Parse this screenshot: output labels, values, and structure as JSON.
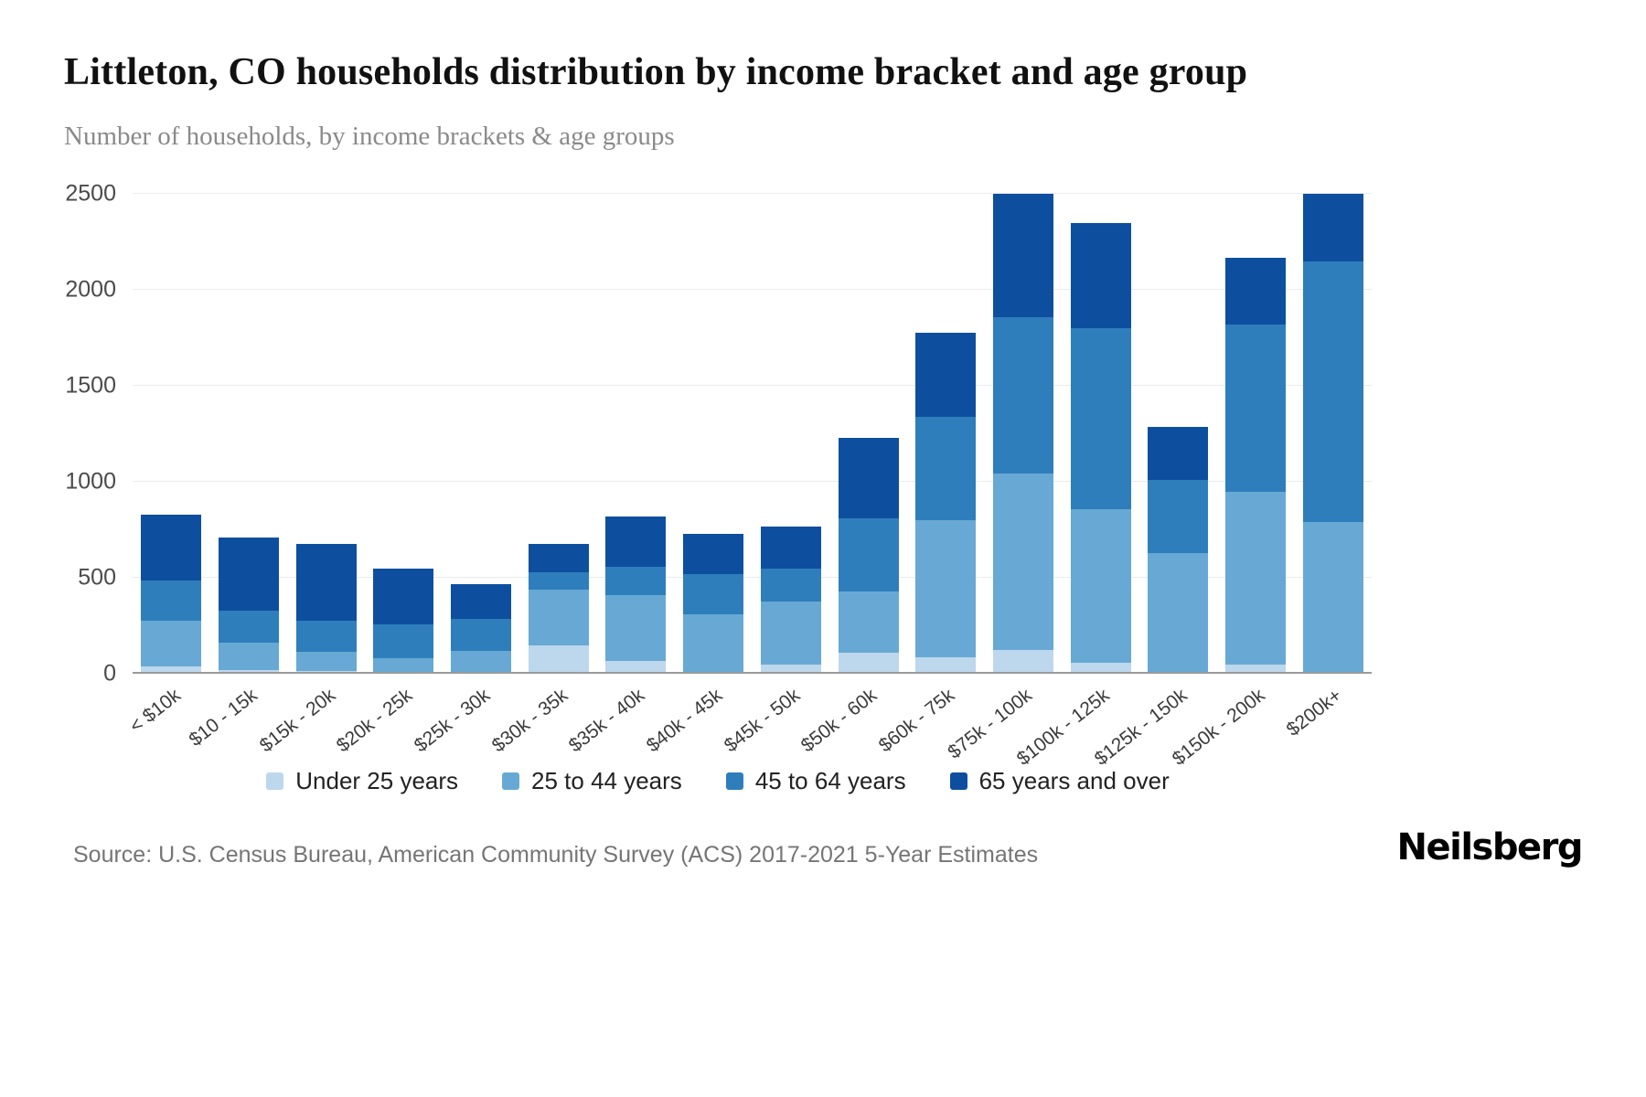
{
  "header": {
    "title": "Littleton, CO households distribution by income bracket and age group",
    "subtitle": "Number of households, by income brackets & age groups"
  },
  "chart_data": {
    "type": "bar",
    "stacked": true,
    "title": "Littleton, CO households distribution by income bracket and age group",
    "subtitle": "Number of households, by income brackets & age groups",
    "categories": [
      "< $10k",
      "$10 - 15k",
      "$15k - 20k",
      "$20k - 25k",
      "$25k - 30k",
      "$30k - 35k",
      "$35k - 40k",
      "$40k - 45k",
      "$45k - 50k",
      "$50k - 60k",
      "$60k - 75k",
      "$75k - 100k",
      "$100k - 125k",
      "$125k - 150k",
      "$150k - 200k",
      "$200k+"
    ],
    "series": [
      {
        "name": "Under 25 years",
        "color": "#bdd7ec",
        "values": [
          40,
          20,
          15,
          10,
          10,
          150,
          70,
          10,
          50,
          110,
          90,
          130,
          60,
          0,
          50,
          0
        ]
      },
      {
        "name": "25 to 44 years",
        "color": "#67a9d4",
        "values": [
          240,
          145,
          100,
          75,
          110,
          290,
          340,
          300,
          330,
          320,
          710,
          930,
          800,
          630,
          900,
          810
        ]
      },
      {
        "name": "45 to 64 years",
        "color": "#2e7ebc",
        "values": [
          210,
          165,
          165,
          175,
          170,
          90,
          150,
          210,
          170,
          380,
          540,
          830,
          940,
          380,
          870,
          1390
        ]
      },
      {
        "name": "65 years and over",
        "color": "#0d4f9e",
        "values": [
          340,
          380,
          400,
          290,
          180,
          150,
          260,
          210,
          220,
          420,
          440,
          650,
          550,
          280,
          350,
          360
        ]
      }
    ],
    "ylim": [
      0,
      2500
    ],
    "yticks": [
      0,
      500,
      1000,
      1500,
      2000,
      2500
    ],
    "grid": true,
    "legend_position": "bottom"
  },
  "footer": {
    "source": "Source: U.S. Census Bureau, American Community Survey (ACS) 2017-2021 5-Year Estimates",
    "brand": "Neilsberg"
  }
}
